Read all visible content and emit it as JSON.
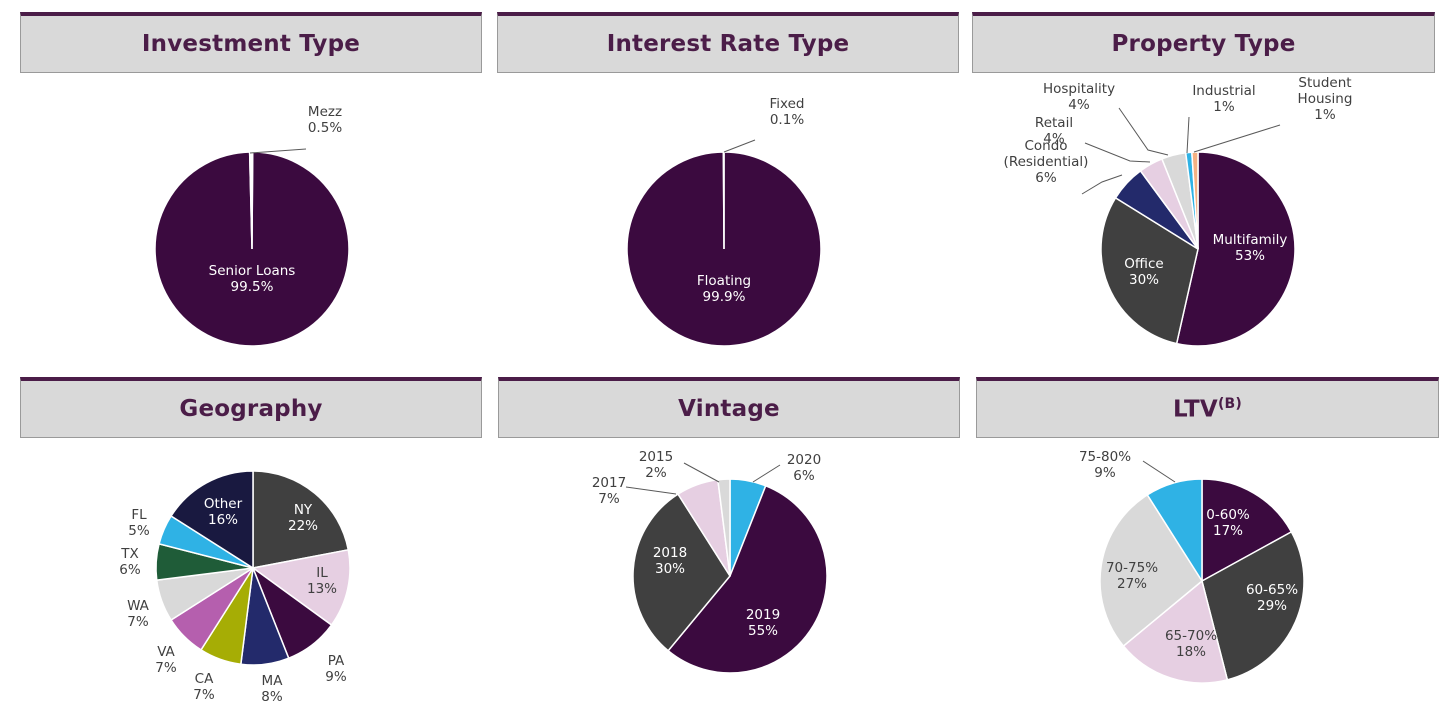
{
  "chart_data": [
    {
      "id": "investment",
      "type": "pie",
      "title": "Investment Type",
      "slices": [
        {
          "label": [
            "Senior Loans"
          ],
          "pct_label": "99.5%",
          "value": 99.5,
          "color": "#3b0a3f",
          "label_color": "#ffffff",
          "inside": true
        },
        {
          "label": [
            "Mezz"
          ],
          "pct_label": "0.5%",
          "value": 0.5,
          "color": "#ffffff",
          "label_color": "#404040",
          "inside": false
        }
      ]
    },
    {
      "id": "interest",
      "type": "pie",
      "title": "Interest Rate Type",
      "slices": [
        {
          "label": [
            "Floating"
          ],
          "pct_label": "99.9%",
          "value": 99.9,
          "color": "#3b0a3f",
          "label_color": "#ffffff",
          "inside": true
        },
        {
          "label": [
            "Fixed"
          ],
          "pct_label": "0.1%",
          "value": 0.1,
          "color": "#ffffff",
          "label_color": "#404040",
          "inside": false
        }
      ]
    },
    {
      "id": "property",
      "type": "pie",
      "title": "Property Type",
      "slices": [
        {
          "label": [
            "Multifamily"
          ],
          "pct_label": "53%",
          "value": 53,
          "color": "#3b0a3f",
          "label_color": "#ffffff",
          "inside": true
        },
        {
          "label": [
            "Office"
          ],
          "pct_label": "30%",
          "value": 30,
          "color": "#404040",
          "label_color": "#ffffff",
          "inside": true
        },
        {
          "label": [
            "Condo",
            "(Residential)"
          ],
          "pct_label": "6%",
          "value": 6,
          "color": "#232a6b",
          "label_color": "#404040",
          "inside": false
        },
        {
          "label": [
            "Retail"
          ],
          "pct_label": "4%",
          "value": 4,
          "color": "#e6cfe2",
          "label_color": "#404040",
          "inside": false
        },
        {
          "label": [
            "Hospitality"
          ],
          "pct_label": "4%",
          "value": 4,
          "color": "#d9d9d9",
          "label_color": "#404040",
          "inside": false
        },
        {
          "label": [
            "Industrial"
          ],
          "pct_label": "1%",
          "value": 1,
          "color": "#2fb2e5",
          "label_color": "#404040",
          "inside": false
        },
        {
          "label": [
            "Student",
            "Housing"
          ],
          "pct_label": "1%",
          "value": 1,
          "color": "#f4b183",
          "label_color": "#404040",
          "inside": false
        }
      ]
    },
    {
      "id": "geography",
      "type": "pie",
      "title": "Geography",
      "slices": [
        {
          "label": [
            "NY"
          ],
          "pct_label": "22%",
          "value": 22,
          "color": "#404040",
          "label_color": "#ffffff",
          "inside": true
        },
        {
          "label": [
            "IL"
          ],
          "pct_label": "13%",
          "value": 13,
          "color": "#e6cfe2",
          "label_color": "#404040",
          "inside": true
        },
        {
          "label": [
            "PA"
          ],
          "pct_label": "9%",
          "value": 9,
          "color": "#3b0a3f",
          "label_color": "#404040",
          "inside": false
        },
        {
          "label": [
            "MA"
          ],
          "pct_label": "8%",
          "value": 8,
          "color": "#232a6b",
          "label_color": "#404040",
          "inside": false
        },
        {
          "label": [
            "CA"
          ],
          "pct_label": "7%",
          "value": 7,
          "color": "#a6ad05",
          "label_color": "#404040",
          "inside": false
        },
        {
          "label": [
            "VA"
          ],
          "pct_label": "7%",
          "value": 7,
          "color": "#b55fae",
          "label_color": "#404040",
          "inside": false
        },
        {
          "label": [
            "WA"
          ],
          "pct_label": "7%",
          "value": 7,
          "color": "#d9d9d9",
          "label_color": "#404040",
          "inside": false
        },
        {
          "label": [
            "TX"
          ],
          "pct_label": "6%",
          "value": 6,
          "color": "#1f5c38",
          "label_color": "#404040",
          "inside": false
        },
        {
          "label": [
            "FL"
          ],
          "pct_label": "5%",
          "value": 5,
          "color": "#2fb2e5",
          "label_color": "#404040",
          "inside": false
        },
        {
          "label": [
            "Other"
          ],
          "pct_label": "16%",
          "value": 16,
          "color": "#191940",
          "label_color": "#ffffff",
          "inside": true
        }
      ]
    },
    {
      "id": "vintage",
      "type": "pie",
      "title": "Vintage",
      "slices": [
        {
          "label": [
            "2020"
          ],
          "pct_label": "6%",
          "value": 6,
          "color": "#2fb2e5",
          "label_color": "#404040",
          "inside": false
        },
        {
          "label": [
            "2019"
          ],
          "pct_label": "55%",
          "value": 55,
          "color": "#3b0a3f",
          "label_color": "#ffffff",
          "inside": true
        },
        {
          "label": [
            "2018"
          ],
          "pct_label": "30%",
          "value": 30,
          "color": "#404040",
          "label_color": "#ffffff",
          "inside": true
        },
        {
          "label": [
            "2017"
          ],
          "pct_label": "7%",
          "value": 7,
          "color": "#e6cfe2",
          "label_color": "#404040",
          "inside": false
        },
        {
          "label": [
            "2015"
          ],
          "pct_label": "2%",
          "value": 2,
          "color": "#d9d9d9",
          "label_color": "#404040",
          "inside": false
        }
      ]
    },
    {
      "id": "ltv",
      "type": "pie",
      "title": "LTV",
      "title_superscript": "(B)",
      "slices": [
        {
          "label": [
            "0-60%"
          ],
          "pct_label": "17%",
          "value": 17,
          "color": "#3b0a3f",
          "label_color": "#ffffff",
          "inside": true
        },
        {
          "label": [
            "60-65%"
          ],
          "pct_label": "29%",
          "value": 29,
          "color": "#404040",
          "label_color": "#ffffff",
          "inside": true
        },
        {
          "label": [
            "65-70%"
          ],
          "pct_label": "18%",
          "value": 18,
          "color": "#e6cfe2",
          "label_color": "#404040",
          "inside": true
        },
        {
          "label": [
            "70-75%"
          ],
          "pct_label": "27%",
          "value": 27,
          "color": "#d9d9d9",
          "label_color": "#404040",
          "inside": true
        },
        {
          "label": [
            "75-80%"
          ],
          "pct_label": "9%",
          "value": 9,
          "color": "#2fb2e5",
          "label_color": "#404040",
          "inside": false
        }
      ]
    }
  ]
}
